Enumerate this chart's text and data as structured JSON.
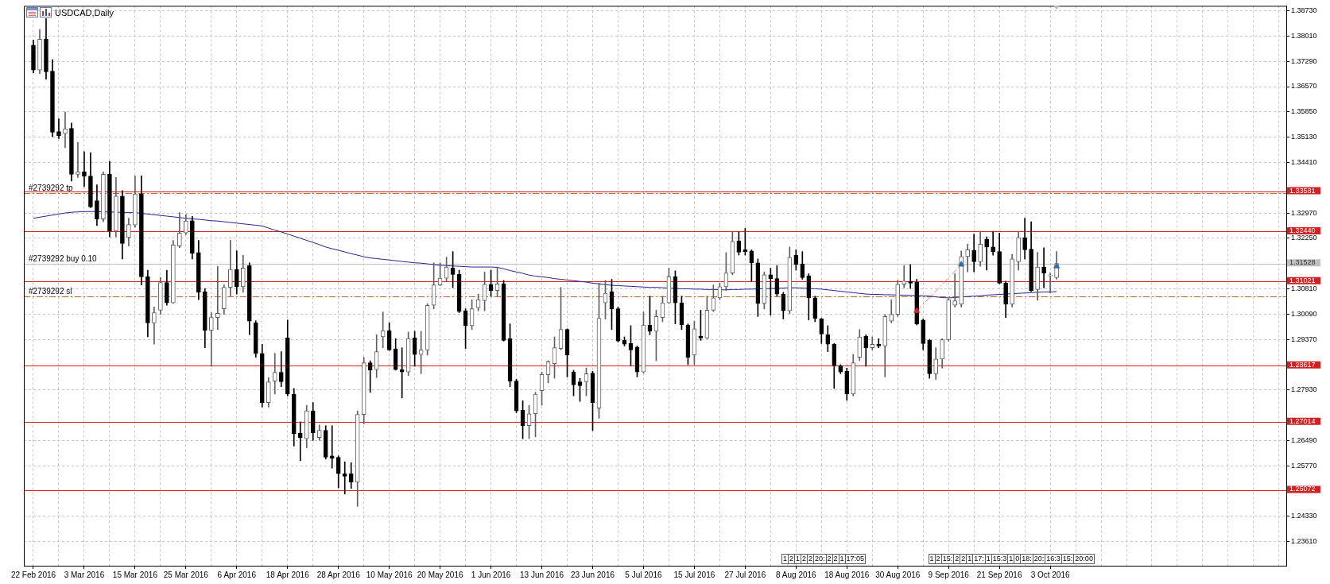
{
  "chart_data": {
    "type": "candlestick",
    "title": "USDCAD,Daily",
    "categories": [
      "22 Feb 2016",
      null,
      null,
      null,
      null,
      null,
      null,
      null,
      "3 Mar 2016",
      null,
      null,
      null,
      null,
      null,
      null,
      null,
      "15 Mar 2016",
      null,
      null,
      null,
      null,
      null,
      null,
      null,
      "25 Mar 2016",
      null,
      null,
      null,
      null,
      null,
      null,
      null,
      "6 Apr 2016",
      null,
      null,
      null,
      null,
      null,
      null,
      null,
      "18 Apr 2016",
      null,
      null,
      null,
      null,
      null,
      null,
      null,
      "28 Apr 2016",
      null,
      null,
      null,
      null,
      null,
      null,
      null,
      "10 May 2016",
      null,
      null,
      null,
      null,
      null,
      null,
      null,
      "20 May 2016",
      null,
      null,
      null,
      null,
      null,
      null,
      null,
      "1 Jun 2016",
      null,
      null,
      null,
      null,
      null,
      null,
      null,
      "13 Jun 2016",
      null,
      null,
      null,
      null,
      null,
      null,
      null,
      "23 Jun 2016",
      null,
      null,
      null,
      null,
      null,
      null,
      null,
      "5 Jul 2016",
      null,
      null,
      null,
      null,
      null,
      null,
      null,
      "15 Jul 2016",
      null,
      null,
      null,
      null,
      null,
      null,
      null,
      "27 Jul 2016",
      null,
      null,
      null,
      null,
      null,
      null,
      null,
      "8 Aug 2016",
      null,
      null,
      null,
      null,
      null,
      null,
      null,
      "18 Aug 2016",
      null,
      null,
      null,
      null,
      null,
      null,
      null,
      "30 Aug 2016",
      null,
      null,
      null,
      null,
      null,
      null,
      null,
      "9 Sep 2016",
      null,
      null,
      null,
      null,
      null,
      null,
      null,
      "21 Sep 2016",
      null,
      null,
      null,
      null,
      null,
      null,
      null,
      "3 Oct 2016",
      null
    ],
    "ohlc": [
      [
        1.3775,
        1.3789,
        1.3696,
        1.3704
      ],
      [
        1.3704,
        1.382,
        1.3694,
        1.3792
      ],
      [
        1.3792,
        1.3851,
        1.3678,
        1.3699
      ],
      [
        1.3701,
        1.3734,
        1.3514,
        1.3527
      ],
      [
        1.3529,
        1.3565,
        1.3509,
        1.3517
      ],
      [
        1.3523,
        1.3585,
        1.3483,
        1.3537
      ],
      [
        1.3538,
        1.3553,
        1.3388,
        1.3407
      ],
      [
        1.3407,
        1.3498,
        1.3398,
        1.3414
      ],
      [
        1.3414,
        1.3472,
        1.3372,
        1.3402
      ],
      [
        1.3402,
        1.3469,
        1.3312,
        1.3314
      ],
      [
        1.3332,
        1.3377,
        1.3261,
        1.328
      ],
      [
        1.328,
        1.3414,
        1.3272,
        1.3407
      ],
      [
        1.3407,
        1.3444,
        1.3229,
        1.3245
      ],
      [
        1.3245,
        1.3398,
        1.3229,
        1.3345
      ],
      [
        1.3345,
        1.3361,
        1.3166,
        1.321
      ],
      [
        1.3227,
        1.3282,
        1.3203,
        1.3264
      ],
      [
        1.3263,
        1.3403,
        1.3256,
        1.3351
      ],
      [
        1.3351,
        1.3403,
        1.3092,
        1.3115
      ],
      [
        1.3116,
        1.3134,
        1.2944,
        1.2984
      ],
      [
        1.2984,
        1.3029,
        1.2923,
        1.3013
      ],
      [
        1.302,
        1.3113,
        1.3008,
        1.3099
      ],
      [
        1.3099,
        1.3134,
        1.3034,
        1.3041
      ],
      [
        1.3041,
        1.3219,
        1.3039,
        1.3206
      ],
      [
        1.3203,
        1.3298,
        1.3198,
        1.324
      ],
      [
        1.324,
        1.3293,
        1.3235,
        1.3274
      ],
      [
        1.3275,
        1.3287,
        1.3166,
        1.3182
      ],
      [
        1.3184,
        1.3219,
        1.305,
        1.3071
      ],
      [
        1.3073,
        1.3082,
        1.2913,
        1.2963
      ],
      [
        1.2963,
        1.3013,
        1.286,
        1.2999
      ],
      [
        1.2999,
        1.3145,
        1.2965,
        1.3011
      ],
      [
        1.3024,
        1.3092,
        1.3008,
        1.3085
      ],
      [
        1.3085,
        1.3219,
        1.306,
        1.3136
      ],
      [
        1.3136,
        1.3189,
        1.3066,
        1.3087
      ],
      [
        1.3087,
        1.3177,
        1.3071,
        1.314
      ],
      [
        1.3147,
        1.3155,
        1.295,
        1.2989
      ],
      [
        1.2984,
        1.299,
        1.2886,
        1.2897
      ],
      [
        1.2897,
        1.2923,
        1.2744,
        1.2757
      ],
      [
        1.2757,
        1.2828,
        1.2744,
        1.2816
      ],
      [
        1.2818,
        1.2897,
        1.2781,
        1.2843
      ],
      [
        1.2843,
        1.2902,
        1.2802,
        1.2816
      ],
      [
        1.2941,
        1.2992,
        1.2776,
        1.2781
      ],
      [
        1.2781,
        1.2797,
        1.2633,
        1.2668
      ],
      [
        1.267,
        1.2702,
        1.2591,
        1.2657
      ],
      [
        1.2654,
        1.2749,
        1.2628,
        1.2733
      ],
      [
        1.2733,
        1.2757,
        1.2649,
        1.267
      ],
      [
        1.2657,
        1.2693,
        1.2649,
        1.2678
      ],
      [
        1.2678,
        1.2691,
        1.2596,
        1.2601
      ],
      [
        1.2605,
        1.2691,
        1.257,
        1.2598
      ],
      [
        1.2601,
        1.2605,
        1.2514,
        1.2554
      ],
      [
        1.2554,
        1.2588,
        1.2496,
        1.2547
      ],
      [
        1.2554,
        1.2586,
        1.2512,
        1.253
      ],
      [
        1.253,
        1.2733,
        1.2461,
        1.2723
      ],
      [
        1.2723,
        1.2886,
        1.2696,
        1.287
      ],
      [
        1.287,
        1.2876,
        1.2786,
        1.2849
      ],
      [
        1.2851,
        1.295,
        1.2828,
        1.2902
      ],
      [
        1.2944,
        1.3015,
        1.2913,
        1.2962
      ],
      [
        1.2962,
        1.2984,
        1.2905,
        1.2907
      ],
      [
        1.291,
        1.2939,
        1.2849,
        1.2851
      ],
      [
        1.2851,
        1.2913,
        1.277,
        1.2844
      ],
      [
        1.2844,
        1.2958,
        1.2834,
        1.2939
      ],
      [
        1.2941,
        1.296,
        1.286,
        1.2894
      ],
      [
        1.2894,
        1.296,
        1.2839,
        1.2907
      ],
      [
        1.2907,
        1.3039,
        1.2892,
        1.3034
      ],
      [
        1.3034,
        1.3155,
        1.3024,
        1.3092
      ],
      [
        1.3092,
        1.3155,
        1.309,
        1.3111
      ],
      [
        1.3111,
        1.3171,
        1.3103,
        1.3143
      ],
      [
        1.314,
        1.3187,
        1.3084,
        1.3122
      ],
      [
        1.3122,
        1.3134,
        1.3013,
        1.3016
      ],
      [
        1.3018,
        1.3024,
        1.2911,
        1.2976
      ],
      [
        1.2976,
        1.305,
        1.2965,
        1.3024
      ],
      [
        1.3027,
        1.3066,
        1.3018,
        1.305
      ],
      [
        1.3047,
        1.3129,
        1.3018,
        1.3094
      ],
      [
        1.3094,
        1.3134,
        1.306,
        1.3076
      ],
      [
        1.3076,
        1.3143,
        1.306,
        1.3095
      ],
      [
        1.3095,
        1.3105,
        1.2932,
        1.2934
      ],
      [
        1.2939,
        1.2981,
        1.2802,
        1.2818
      ],
      [
        1.2818,
        1.2823,
        1.2728,
        1.2733
      ],
      [
        1.2735,
        1.2762,
        1.2654,
        1.2691
      ],
      [
        1.2691,
        1.2749,
        1.2654,
        1.2725
      ],
      [
        1.2725,
        1.2786,
        1.2659,
        1.2781
      ],
      [
        1.2791,
        1.2844,
        1.2749,
        1.2837
      ],
      [
        1.2836,
        1.2876,
        1.2813,
        1.2873
      ],
      [
        1.2868,
        1.2944,
        1.2826,
        1.2913
      ],
      [
        1.2911,
        1.3085,
        1.2907,
        1.2965
      ],
      [
        1.2965,
        1.2967,
        1.283,
        1.2892
      ],
      [
        1.2844,
        1.2849,
        1.2776,
        1.2807
      ],
      [
        1.2816,
        1.2826,
        1.276,
        1.2805
      ],
      [
        1.2816,
        1.2855,
        1.2776,
        1.2839
      ],
      [
        1.2841,
        1.2846,
        1.2677,
        1.2757
      ],
      [
        1.2741,
        1.3097,
        1.2712,
        1.2997
      ],
      [
        1.3041,
        1.3105,
        1.2995,
        1.3068
      ],
      [
        1.3073,
        1.3108,
        1.2965,
        1.3024
      ],
      [
        1.3024,
        1.3029,
        1.2929,
        1.2932
      ],
      [
        1.2934,
        1.2944,
        1.2918,
        1.2923
      ],
      [
        1.2925,
        1.2976,
        1.2862,
        1.2907
      ],
      [
        1.2915,
        1.2918,
        1.283,
        1.2844
      ],
      [
        1.2844,
        1.3015,
        1.2841,
        1.2978
      ],
      [
        1.2978,
        1.306,
        1.295,
        1.296
      ],
      [
        1.296,
        1.302,
        1.2876,
        1.3002
      ],
      [
        1.2999,
        1.306,
        1.2987,
        1.3041
      ],
      [
        1.3041,
        1.314,
        1.3039,
        1.3115
      ],
      [
        1.3115,
        1.3132,
        1.2981,
        1.3041
      ],
      [
        1.3041,
        1.306,
        1.2965,
        1.2978
      ],
      [
        1.2978,
        1.2981,
        1.2865,
        1.2886
      ],
      [
        1.2892,
        1.2989,
        1.2865,
        1.2967
      ],
      [
        1.2946,
        1.302,
        1.2934,
        1.2941
      ],
      [
        1.2941,
        1.306,
        1.2939,
        1.302
      ],
      [
        1.302,
        1.3092,
        1.3016,
        1.3055
      ],
      [
        1.3055,
        1.3097,
        1.305,
        1.3087
      ],
      [
        1.3087,
        1.3184,
        1.3076,
        1.3126
      ],
      [
        1.3126,
        1.3243,
        1.3121,
        1.3216
      ],
      [
        1.3217,
        1.3243,
        1.3177,
        1.3185
      ],
      [
        1.3192,
        1.3253,
        1.3177,
        1.3187
      ],
      [
        1.3189,
        1.3192,
        1.3103,
        1.3155
      ],
      [
        1.3155,
        1.3166,
        1.3002,
        1.3039
      ],
      [
        1.3039,
        1.3129,
        1.3024,
        1.3121
      ],
      [
        1.3121,
        1.314,
        1.3006,
        1.311
      ],
      [
        1.311,
        1.3147,
        1.306,
        1.3066
      ],
      [
        1.3066,
        1.3071,
        1.2995,
        1.3018
      ],
      [
        1.3018,
        1.32,
        1.301,
        1.317
      ],
      [
        1.3177,
        1.3192,
        1.3134,
        1.315
      ],
      [
        1.3152,
        1.3187,
        1.3108,
        1.3113
      ],
      [
        1.3118,
        1.3124,
        1.2992,
        1.3055
      ],
      [
        1.3055,
        1.306,
        1.2987,
        1.2997
      ],
      [
        1.2995,
        1.2997,
        1.2925,
        1.2952
      ],
      [
        1.295,
        1.2976,
        1.2902,
        1.2923
      ],
      [
        1.2923,
        1.2925,
        1.2797,
        1.2862
      ],
      [
        1.2862,
        1.2865,
        1.2839,
        1.2844
      ],
      [
        1.2846,
        1.2855,
        1.2763,
        1.2781
      ],
      [
        1.2781,
        1.2894,
        1.2776,
        1.287
      ],
      [
        1.2886,
        1.2965,
        1.2876,
        1.2944
      ],
      [
        1.2946,
        1.295,
        1.286,
        1.2913
      ],
      [
        1.2913,
        1.2944,
        1.2907,
        1.2923
      ],
      [
        1.2923,
        1.2939,
        1.2913,
        1.2918
      ],
      [
        1.2918,
        1.3008,
        1.283,
        1.3002
      ],
      [
        1.2989,
        1.305,
        1.2984,
        1.3008
      ],
      [
        1.3008,
        1.3105,
        1.3002,
        1.3094
      ],
      [
        1.3094,
        1.3147,
        1.3084,
        1.3103
      ],
      [
        1.3103,
        1.315,
        1.3082,
        1.3097
      ],
      [
        1.31,
        1.3108,
        1.2978,
        1.2981
      ],
      [
        1.2992,
        1.2995,
        1.2907,
        1.2925
      ],
      [
        1.2934,
        1.2937,
        1.2826,
        1.2839
      ],
      [
        1.2839,
        1.2913,
        1.2823,
        1.2881
      ],
      [
        1.2881,
        1.2939,
        1.2855,
        1.2936
      ],
      [
        1.2936,
        1.3052,
        1.2932,
        1.305
      ],
      [
        1.3034,
        1.3124,
        1.3029,
        1.3047
      ],
      [
        1.3037,
        1.3189,
        1.3029,
        1.3173
      ],
      [
        1.3173,
        1.3208,
        1.3129,
        1.3192
      ],
      [
        1.319,
        1.3237,
        1.3129,
        1.3158
      ],
      [
        1.3158,
        1.3245,
        1.3145,
        1.3208
      ],
      [
        1.3222,
        1.3229,
        1.3134,
        1.32
      ],
      [
        1.32,
        1.3245,
        1.3177,
        1.3187
      ],
      [
        1.3187,
        1.324,
        1.3095,
        1.3097
      ],
      [
        1.3097,
        1.3103,
        1.2999,
        1.3037
      ],
      [
        1.3037,
        1.3179,
        1.3029,
        1.3166
      ],
      [
        1.3158,
        1.3245,
        1.3134,
        1.3227
      ],
      [
        1.3227,
        1.3282,
        1.3166,
        1.3192
      ],
      [
        1.3194,
        1.3272,
        1.3073,
        1.3076
      ],
      [
        1.3079,
        1.3185,
        1.3048,
        1.3143
      ],
      [
        1.3143,
        1.3198,
        1.3084,
        1.3126
      ],
      [
        1.3118,
        1.3126,
        1.3069,
        1.312
      ],
      [
        1.3113,
        1.3187,
        1.3108,
        1.3153
      ]
    ],
    "series": [
      {
        "type": "line",
        "color": "#23238e",
        "values": [
          1.3282,
          1.3285,
          1.3288,
          1.3291,
          1.3294,
          1.3297,
          1.3299,
          1.33,
          1.3301,
          1.3301,
          1.3301,
          1.33,
          1.33,
          1.3299,
          1.3299,
          1.3298,
          1.3298,
          1.3296,
          1.3294,
          1.3292,
          1.329,
          1.3288,
          1.3286,
          1.3284,
          1.3282,
          1.328,
          1.3279,
          1.3277,
          1.3275,
          1.3274,
          1.3272,
          1.327,
          1.3268,
          1.3266,
          1.3264,
          1.3262,
          1.326,
          1.3254,
          1.3248,
          1.3243,
          1.3237,
          1.3231,
          1.3225,
          1.3219,
          1.3213,
          1.3207,
          1.32,
          1.3195,
          1.3191,
          1.3186,
          1.3181,
          1.3177,
          1.3172,
          1.3169,
          1.3167,
          1.3165,
          1.3163,
          1.3161,
          1.3159,
          1.3157,
          1.3155,
          1.3154,
          1.3152,
          1.315,
          1.3148,
          1.3147,
          1.3146,
          1.3145,
          1.3144,
          1.3143,
          1.3143,
          1.3143,
          1.3143,
          1.3142,
          1.3138,
          1.3133,
          1.3129,
          1.3125,
          1.312,
          1.3117,
          1.3115,
          1.3113,
          1.311,
          1.3108,
          1.3106,
          1.3104,
          1.3102,
          1.31,
          1.3097,
          1.3095,
          1.3093,
          1.3091,
          1.309,
          1.3089,
          1.3088,
          1.3087,
          1.3086,
          1.3085,
          1.3085,
          1.3084,
          1.3083,
          1.3082,
          1.3081,
          1.3081,
          1.308,
          1.308,
          1.3079,
          1.3079,
          1.3078,
          1.3078,
          1.3079,
          1.3079,
          1.308,
          1.308,
          1.3081,
          1.3081,
          1.3082,
          1.3082,
          1.3083,
          1.3084,
          1.3084,
          1.3083,
          1.3082,
          1.3081,
          1.308,
          1.3078,
          1.3076,
          1.3074,
          1.3072,
          1.307,
          1.3068,
          1.3066,
          1.3065,
          1.3065,
          1.3064,
          1.3064,
          1.3063,
          1.3063,
          1.3062,
          1.3062,
          1.3061,
          1.306,
          1.3058,
          1.3056,
          1.3055,
          1.3056,
          1.3058,
          1.3059,
          1.306,
          1.3061,
          1.3063,
          1.3064,
          1.3065,
          1.3066,
          1.3067,
          1.3068,
          1.3069,
          1.307,
          1.3071,
          1.3072,
          1.3072,
          1.3073
        ]
      },
      {
        "type": "line",
        "color": "#e08080",
        "line_style": "dashed",
        "values": [
          null,
          null,
          null,
          null,
          null,
          null,
          null,
          null,
          null,
          null,
          null,
          null,
          null,
          null,
          null,
          null,
          null,
          null,
          null,
          null,
          null,
          null,
          null,
          null,
          null,
          null,
          null,
          null,
          null,
          null,
          null,
          null,
          null,
          null,
          null,
          null,
          null,
          null,
          null,
          null,
          null,
          null,
          null,
          null,
          null,
          null,
          null,
          null,
          null,
          null,
          null,
          null,
          null,
          null,
          null,
          null,
          null,
          null,
          null,
          null,
          null,
          null,
          null,
          null,
          null,
          null,
          null,
          null,
          null,
          null,
          null,
          null,
          null,
          null,
          null,
          null,
          null,
          null,
          null,
          null,
          null,
          null,
          null,
          null,
          null,
          null,
          null,
          null,
          null,
          null,
          null,
          null,
          null,
          null,
          null,
          null,
          null,
          null,
          null,
          null,
          null,
          null,
          null,
          null,
          null,
          null,
          null,
          null,
          null,
          null,
          null,
          null,
          null,
          null,
          null,
          null,
          null,
          null,
          null,
          null,
          null,
          null,
          null,
          null,
          null,
          null,
          null,
          null,
          null,
          null,
          null,
          null,
          null,
          null,
          null,
          null,
          null,
          null,
          null,
          1.3018,
          null,
          null,
          null,
          null,
          null,
          null,
          1.315,
          null,
          null,
          null,
          null,
          null,
          null,
          null,
          null,
          null,
          null,
          null,
          null,
          null,
          null,
          null
        ]
      },
      {
        "type": "scatter",
        "color": "#e02020",
        "marker": "triangle",
        "values": [
          null,
          null,
          null,
          null,
          null,
          null,
          null,
          null,
          null,
          null,
          null,
          null,
          null,
          null,
          null,
          null,
          null,
          null,
          null,
          null,
          null,
          null,
          null,
          null,
          null,
          null,
          null,
          null,
          null,
          null,
          null,
          null,
          null,
          null,
          null,
          null,
          null,
          null,
          null,
          null,
          null,
          null,
          null,
          null,
          null,
          null,
          null,
          null,
          null,
          null,
          null,
          null,
          null,
          null,
          null,
          null,
          null,
          null,
          null,
          null,
          null,
          null,
          null,
          null,
          null,
          null,
          null,
          null,
          null,
          null,
          null,
          null,
          null,
          null,
          null,
          null,
          null,
          null,
          null,
          null,
          null,
          null,
          null,
          null,
          null,
          null,
          null,
          null,
          null,
          null,
          null,
          null,
          null,
          null,
          null,
          null,
          null,
          null,
          null,
          null,
          null,
          null,
          null,
          null,
          null,
          null,
          null,
          null,
          null,
          null,
          null,
          null,
          null,
          null,
          null,
          null,
          null,
          null,
          null,
          null,
          null,
          null,
          null,
          null,
          null,
          null,
          null,
          null,
          null,
          null,
          null,
          null,
          null,
          null,
          null,
          null,
          null,
          null,
          null,
          1.3018,
          null,
          null,
          null,
          null,
          null,
          null,
          null,
          null,
          null,
          null,
          null,
          null,
          null,
          null,
          null,
          null,
          null,
          null,
          null,
          null,
          null,
          null
        ]
      },
      {
        "type": "scatter",
        "color": "#2f6db5",
        "marker": "triangle",
        "values": [
          null,
          null,
          null,
          null,
          null,
          null,
          null,
          null,
          null,
          null,
          null,
          null,
          null,
          null,
          null,
          null,
          null,
          null,
          null,
          null,
          null,
          null,
          null,
          null,
          null,
          null,
          null,
          null,
          null,
          null,
          null,
          null,
          null,
          null,
          null,
          null,
          null,
          null,
          null,
          null,
          null,
          null,
          null,
          null,
          null,
          null,
          null,
          null,
          null,
          null,
          null,
          null,
          null,
          null,
          null,
          null,
          null,
          null,
          null,
          null,
          null,
          null,
          null,
          null,
          null,
          null,
          null,
          null,
          null,
          null,
          null,
          null,
          null,
          null,
          null,
          null,
          null,
          null,
          null,
          null,
          null,
          null,
          null,
          null,
          null,
          null,
          null,
          null,
          null,
          null,
          null,
          null,
          null,
          null,
          null,
          null,
          null,
          null,
          null,
          null,
          null,
          null,
          null,
          null,
          null,
          null,
          null,
          null,
          null,
          null,
          null,
          null,
          null,
          null,
          null,
          null,
          null,
          null,
          null,
          null,
          null,
          null,
          null,
          null,
          null,
          null,
          null,
          null,
          null,
          null,
          null,
          null,
          null,
          null,
          null,
          null,
          null,
          null,
          null,
          null,
          null,
          null,
          null,
          null,
          null,
          null,
          1.315,
          null,
          null,
          null,
          null,
          null,
          null,
          null,
          null,
          null,
          null,
          null,
          null,
          null,
          null,
          1.3145
        ]
      }
    ],
    "ylim": [
      1.2292,
      1.3887
    ],
    "yticks": [
      {
        "value": 1.2361,
        "label": "1.23610"
      },
      {
        "value": 1.2433,
        "label": "1.24330"
      },
      {
        "value": 1.2577,
        "label": "1.25770"
      },
      {
        "value": 1.2649,
        "label": "1.26490"
      },
      {
        "value": 1.2793,
        "label": "1.27930"
      },
      {
        "value": 1.2937,
        "label": "1.29370"
      },
      {
        "value": 1.3009,
        "label": "1.30090"
      },
      {
        "value": 1.3081,
        "label": "1.30810"
      },
      {
        "value": 1.3225,
        "label": "1.32250"
      },
      {
        "value": 1.3297,
        "label": "1.32970"
      },
      {
        "value": 1.3441,
        "label": "1.34410"
      },
      {
        "value": 1.3513,
        "label": "1.35130"
      },
      {
        "value": 1.3585,
        "label": "1.35850"
      },
      {
        "value": 1.3657,
        "label": "1.36570"
      },
      {
        "value": 1.3729,
        "label": "1.37290"
      },
      {
        "value": 1.3801,
        "label": "1.38010"
      },
      {
        "value": 1.3873,
        "label": "1.38730"
      }
    ],
    "grid": true,
    "ref_lines": [
      {
        "axis": "y",
        "value": 1.33581,
        "label": "1.33581",
        "color": "#d42020"
      },
      {
        "axis": "y",
        "value": 1.3244,
        "label": "1.32440",
        "color": "#d42020"
      },
      {
        "axis": "y",
        "value": 1.31021,
        "label": "1.31021",
        "color": "#d42020"
      },
      {
        "axis": "y",
        "value": 1.28617,
        "label": "1.28617",
        "color": "#d42020"
      },
      {
        "axis": "y",
        "value": 1.27014,
        "label": "1.27014",
        "color": "#d42020"
      },
      {
        "axis": "y",
        "value": 1.25072,
        "label": "1.25072",
        "color": "#d42020"
      },
      {
        "axis": "y",
        "value": 1.31528,
        "label": "1.31528",
        "color": "#c0c0c0"
      },
      {
        "axis": "y",
        "value": 1.3354,
        "label": "#2739292 tp",
        "color": "#d06030",
        "line_style": "dashed"
      },
      {
        "axis": "y",
        "value": 1.3059,
        "label": "#2739292 sl",
        "color": "#d06030",
        "line_style": "dashed"
      }
    ],
    "annotations": [
      {
        "text": "#2739292 buy 0.10",
        "x": "22 Feb 2016",
        "y": 1.31528
      },
      "1 2 1 2 2 20: 2 2 1 17:05",
      "1 2 15: 2 2 1 17: 1 15:3 1 0 18: 20: 16:3 15: 20:00"
    ]
  }
}
